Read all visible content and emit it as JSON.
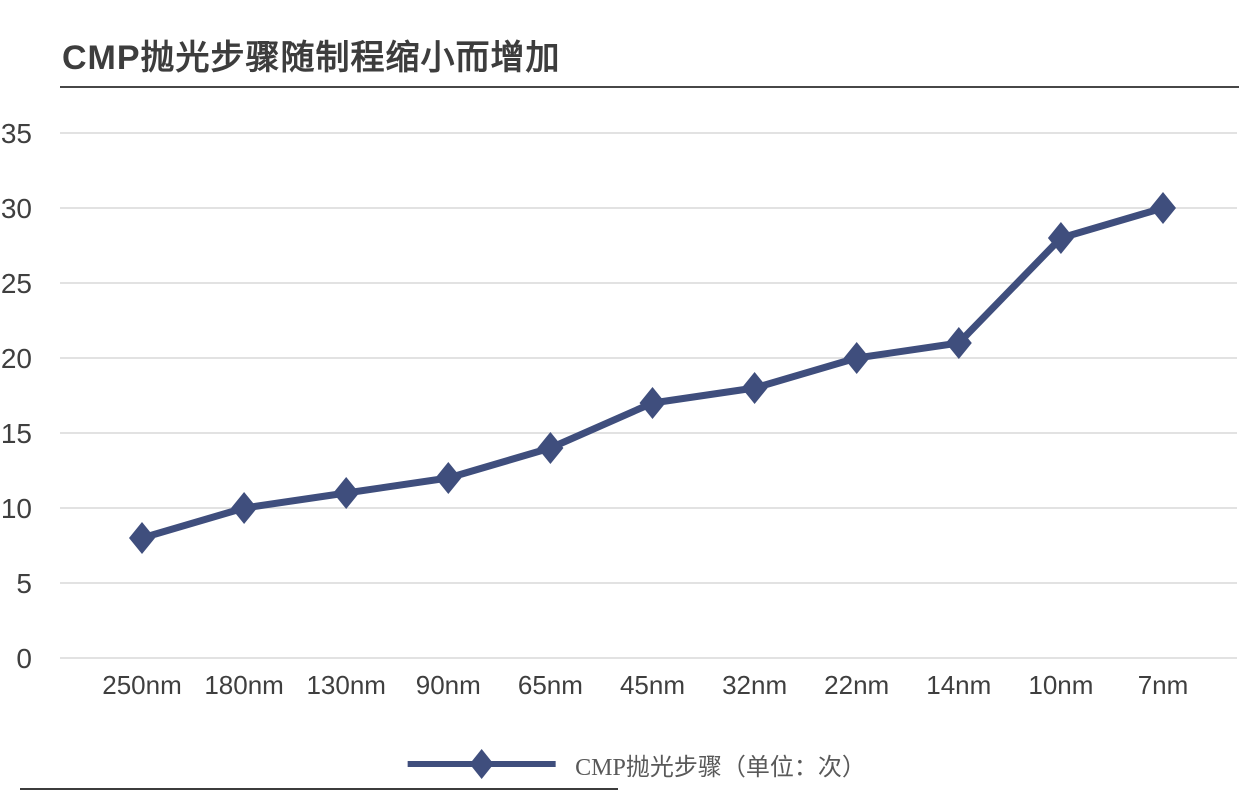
{
  "page": {
    "title": "CMP抛光步骤随制程缩小而增加"
  },
  "legend": {
    "label": "CMP抛光步骤（单位：次）"
  },
  "chart_data": {
    "type": "line",
    "title": "CMP抛光步骤随制程缩小而增加",
    "categories": [
      "250nm",
      "180nm",
      "130nm",
      "90nm",
      "65nm",
      "45nm",
      "32nm",
      "22nm",
      "14nm",
      "10nm",
      "7nm"
    ],
    "series": [
      {
        "name": "CMP抛光步骤（单位：次）",
        "values": [
          8,
          10,
          11,
          12,
          14,
          17,
          18,
          20,
          21,
          28,
          30
        ]
      }
    ],
    "xlabel": "",
    "ylabel": "",
    "ylim": [
      0,
      35
    ],
    "ytick_step": 5,
    "yticks": [
      0,
      5,
      10,
      15,
      20,
      25,
      30,
      35
    ],
    "grid": true,
    "marker": "diamond",
    "legend_position": "bottom",
    "colors": {
      "line": "#3F4E7D",
      "marker": "#3F4E7D",
      "gridline": "#D8D8D8",
      "axis_text": "#3F3F3F",
      "title_text": "#3D3D3D",
      "legend_text": "#595959",
      "rule": "#474747",
      "background": "#FFFFFF"
    }
  }
}
